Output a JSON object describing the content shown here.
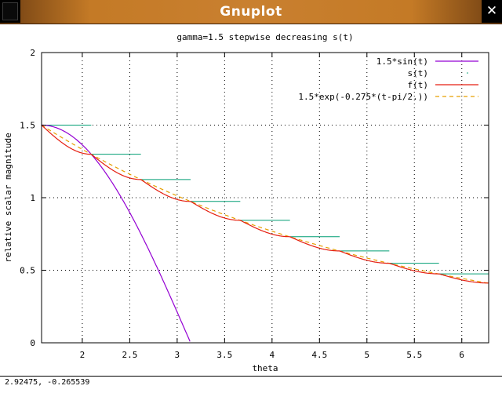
{
  "window": {
    "title": "Gnuplot",
    "close_glyph": "✕"
  },
  "icons": {
    "window_menu": "window-menu-icon",
    "close": "close-icon"
  },
  "status": {
    "coords": "2.92475, -0.265539"
  },
  "chart_data": {
    "type": "line",
    "title": "gamma=1.5 stepwise decreasing s(t)",
    "xlabel": "theta",
    "ylabel": "relative scalar magnitude",
    "xlim": [
      1.5708,
      6.2832
    ],
    "ylim": [
      0,
      2
    ],
    "xticks": [
      2,
      2.5,
      3,
      3.5,
      4,
      4.5,
      5,
      5.5,
      6
    ],
    "xtick_labels": [
      "2",
      "2.5",
      "3",
      "3.5",
      "4",
      "4.5",
      "5",
      "5.5",
      "6"
    ],
    "yticks": [
      0,
      0.5,
      1,
      1.5,
      2
    ],
    "ytick_labels": [
      "0",
      "0.5",
      "1",
      "1.5",
      "2"
    ],
    "grid": true,
    "legend_position": "top-right",
    "series": [
      {
        "name": "1.5*sin(t)",
        "color": "#9400d3",
        "style": "solid"
      },
      {
        "name": "s(t)",
        "color": "#009e73",
        "style": "steps"
      },
      {
        "name": "f(t)",
        "color": "#e51e10",
        "style": "solid"
      },
      {
        "name": "1.5*exp(-0.275*(t-pi/2.))",
        "color": "#e69f00",
        "style": "dashed"
      }
    ],
    "steps": {
      "x_start": [
        1.5708,
        2.0944,
        2.618,
        3.1416,
        3.6652,
        4.1888,
        4.7124,
        5.236,
        5.7596
      ],
      "x_end": [
        2.0944,
        2.618,
        3.1416,
        3.6652,
        4.1888,
        4.7124,
        5.236,
        5.7596,
        6.2832
      ],
      "y": [
        1.5,
        1.299,
        1.125,
        0.974,
        0.844,
        0.731,
        0.633,
        0.548,
        0.475
      ]
    }
  }
}
